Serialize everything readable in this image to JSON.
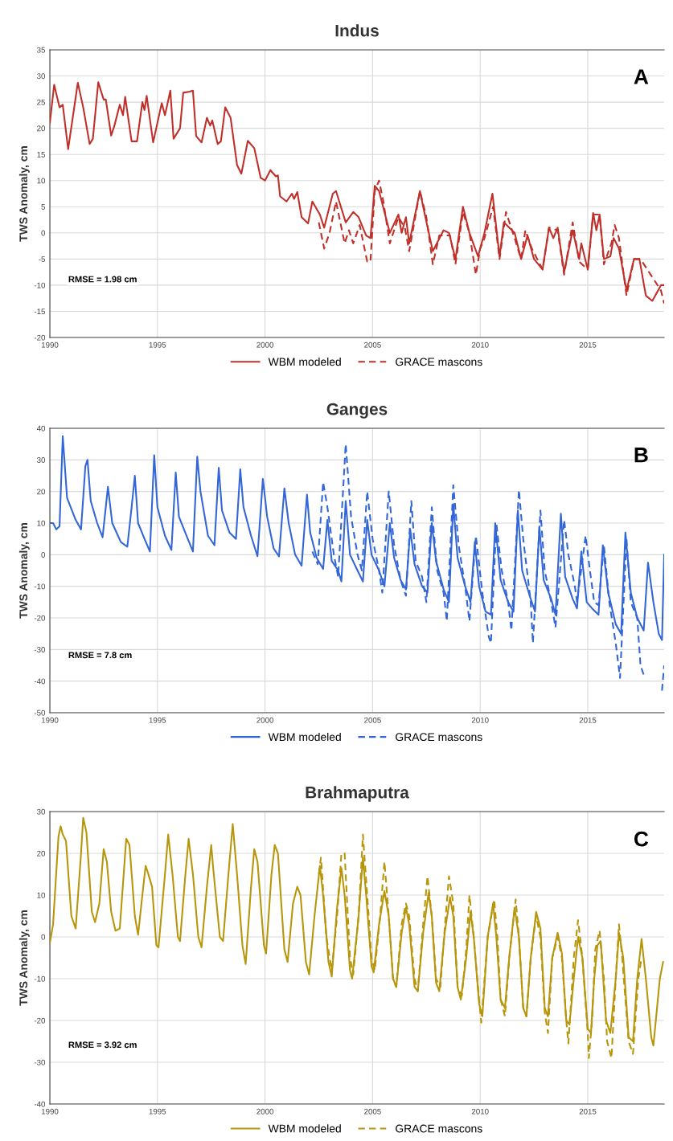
{
  "chart_data": [
    {
      "type": "line",
      "title": "Indus",
      "ylabel": "TWS Anomaly, cm",
      "annotations": [
        "A",
        "RMSE = 1.98 cm"
      ],
      "xlim": [
        1990,
        2018.55
      ],
      "xticks": [
        1990,
        1995,
        2000,
        2005,
        2010,
        2015
      ],
      "ylim": [
        -20,
        35
      ],
      "yticks": [
        -20,
        -15,
        -10,
        -5,
        0,
        5,
        10,
        15,
        20,
        25,
        30,
        35
      ],
      "grid": true,
      "legend": "bottom",
      "marker": "none",
      "series": [
        {
          "name": "WBM modeled",
          "color": "#c0302a",
          "line_style": "solid",
          "x": [
            1990.0,
            1990.2,
            1990.45,
            1990.6,
            1990.85,
            1991.3,
            1991.55,
            1991.85,
            1992.0,
            1992.25,
            1992.5,
            1992.6,
            1992.85,
            1993.0,
            1993.25,
            1993.4,
            1993.5,
            1993.8,
            1994.05,
            1994.3,
            1994.4,
            1994.5,
            1994.8,
            1995.2,
            1995.35,
            1995.6,
            1995.75,
            1996.05,
            1996.2,
            1996.5,
            1996.65,
            1996.8,
            1997.05,
            1997.3,
            1997.45,
            1997.55,
            1997.8,
            1997.95,
            1998.15,
            1998.4,
            1998.7,
            1998.9,
            1999.2,
            1999.5,
            1999.8,
            2000.0,
            2000.25,
            2000.5,
            2000.6,
            2000.7,
            2001.0,
            2001.25,
            2001.35,
            2001.5,
            2001.7,
            2002.0,
            2002.2,
            2002.55,
            2002.75,
            2003.15,
            2003.3,
            2003.75,
            2004.1,
            2004.35,
            2004.7,
            2004.9,
            2005.1,
            2005.3,
            2005.8,
            2006.2,
            2006.35,
            2006.55,
            2006.7,
            2007.2,
            2007.4,
            2007.8,
            2008.3,
            2008.55,
            2008.85,
            2009.2,
            2009.5,
            2009.9,
            2010.2,
            2010.57,
            2010.9,
            2011.1,
            2011.6,
            2011.9,
            2012.2,
            2012.5,
            2012.9,
            2013.2,
            2013.4,
            2013.6,
            2013.9,
            2014.3,
            2014.6,
            2014.7,
            2015.0,
            2015.25,
            2015.4,
            2015.55,
            2015.75,
            2016.05,
            2016.2,
            2016.45,
            2016.8,
            2017.15,
            2017.4,
            2017.7,
            2018.0,
            2018.4,
            2018.55
          ],
          "values": [
            21,
            28.3,
            24,
            24.5,
            16,
            28.7,
            24,
            17,
            18,
            28.8,
            25.5,
            25.5,
            18.6,
            20.5,
            24.5,
            22.5,
            26,
            17.5,
            17.5,
            25,
            23.5,
            26.2,
            17.3,
            24.8,
            22.5,
            27.2,
            18,
            20,
            26.8,
            27,
            27.2,
            18.5,
            17.3,
            22,
            20.5,
            21.5,
            17,
            17.5,
            24,
            22,
            13,
            11.3,
            17.6,
            16.2,
            10.5,
            10,
            12,
            10.8,
            11,
            7,
            6,
            7.5,
            6.5,
            7.8,
            3,
            1.8,
            6,
            3.5,
            1,
            7.5,
            8,
            2,
            4,
            3,
            -0.5,
            -1,
            9,
            8,
            0,
            3.5,
            0,
            3,
            -2,
            8,
            4,
            -3.5,
            0.5,
            0,
            -5,
            5,
            0,
            -4.5,
            0,
            7.5,
            -4.5,
            2,
            0,
            -5,
            -0.5,
            -5,
            -7,
            1,
            -1,
            1,
            -7.5,
            0.5,
            -5,
            -2,
            -7,
            3.8,
            0.5,
            3.5,
            -5,
            -4.5,
            -1,
            -3,
            -11,
            -5,
            -5,
            -12,
            -13,
            -10,
            -10
          ]
        },
        {
          "name": "GRACE mascons",
          "color": "#c0302a",
          "line_style": "dashed",
          "x": [
            2002.5,
            2002.75,
            2003.0,
            2003.3,
            2003.7,
            2003.9,
            2004.1,
            2004.4,
            2004.75,
            2004.9,
            2005.1,
            2005.3,
            2005.5,
            2005.8,
            2006.2,
            2006.5,
            2006.7,
            2007.2,
            2007.5,
            2007.8,
            2008.1,
            2008.6,
            2008.85,
            2009.2,
            2009.5,
            2009.8,
            2010.0,
            2010.2,
            2010.6,
            2010.9,
            2011.2,
            2011.6,
            2011.9,
            2012.1,
            2012.4,
            2012.9,
            2013.2,
            2013.6,
            2013.9,
            2014.3,
            2014.6,
            2015.0,
            2015.25,
            2015.55,
            2015.75,
            2016.1,
            2016.25,
            2016.45,
            2016.8,
            2017.15,
            2017.45,
            2018.4,
            2018.55
          ],
          "values": [
            2,
            -3,
            0,
            6,
            -2,
            0.5,
            -2,
            1.5,
            -5.5,
            -5.5,
            8,
            10,
            6,
            -2,
            3,
            1,
            -3.5,
            8,
            3,
            -6,
            -0.5,
            -0.5,
            -6,
            4,
            0,
            -8,
            -3,
            -1,
            5,
            -5,
            4,
            -1,
            -5,
            0.5,
            -3,
            -7,
            1,
            0.5,
            -8,
            2,
            -5.5,
            -7,
            3.5,
            3.5,
            -6,
            -2,
            1.5,
            -1,
            -12,
            -5,
            -5,
            -11,
            -13.5
          ]
        }
      ]
    },
    {
      "type": "line",
      "title": "Ganges",
      "ylabel": "TWS Anomaly, cm",
      "annotations": [
        "B",
        "RMSE = 7.8 cm"
      ],
      "xlim": [
        1990,
        2018.55
      ],
      "xticks": [
        1990,
        1995,
        2000,
        2005,
        2010,
        2015
      ],
      "ylim": [
        -50,
        40
      ],
      "yticks": [
        -50,
        -40,
        -30,
        -20,
        -10,
        0,
        10,
        20,
        30,
        40
      ],
      "grid": true,
      "legend": "bottom",
      "marker": "none",
      "series": [
        {
          "name": "WBM modeled",
          "color": "#3366d6",
          "line_style": "solid",
          "x": [
            1990.0,
            1990.15,
            1990.3,
            1990.45,
            1990.6,
            1990.8,
            1991.2,
            1991.45,
            1991.65,
            1991.75,
            1991.9,
            1992.2,
            1992.45,
            1992.7,
            1992.9,
            1993.3,
            1993.6,
            1993.8,
            1993.95,
            1994.1,
            1994.4,
            1994.65,
            1994.85,
            1995.0,
            1995.35,
            1995.65,
            1995.85,
            1996.0,
            1996.35,
            1996.65,
            1996.85,
            1997.0,
            1997.35,
            1997.65,
            1997.85,
            1998.0,
            1998.35,
            1998.65,
            1998.85,
            1999.0,
            1999.35,
            1999.65,
            1999.9,
            2000.1,
            2000.4,
            2000.65,
            2000.9,
            2001.1,
            2001.4,
            2001.7,
            2001.95,
            2002.1,
            2002.4,
            2002.7,
            2002.9,
            2003.1,
            2003.4,
            2003.55,
            2003.75,
            2003.95,
            2004.3,
            2004.55,
            2004.75,
            2004.95,
            2005.3,
            2005.55,
            2005.8,
            2006.0,
            2006.3,
            2006.55,
            2006.75,
            2006.95,
            2007.3,
            2007.55,
            2007.75,
            2007.95,
            2008.3,
            2008.55,
            2008.75,
            2008.95,
            2009.3,
            2009.55,
            2009.75,
            2009.95,
            2010.25,
            2010.5,
            2010.7,
            2010.95,
            2011.3,
            2011.55,
            2011.75,
            2011.95,
            2012.3,
            2012.55,
            2012.75,
            2012.95,
            2013.3,
            2013.5,
            2013.75,
            2013.95,
            2014.3,
            2014.5,
            2014.7,
            2014.95,
            2015.2,
            2015.5,
            2015.7,
            2015.95,
            2016.3,
            2016.55,
            2016.75,
            2017.0,
            2017.3,
            2017.6,
            2017.8,
            2018.05,
            2018.3,
            2018.45,
            2018.55
          ],
          "values": [
            10,
            10,
            8,
            9,
            37.5,
            18,
            11,
            8,
            28,
            30,
            17,
            10,
            5.5,
            21.5,
            10,
            4,
            2.5,
            15,
            25,
            10,
            5,
            1,
            31.5,
            15,
            6,
            1.5,
            26,
            12,
            6,
            1,
            31,
            20,
            6,
            3,
            27.5,
            14,
            7,
            5,
            27,
            15,
            6,
            -0.5,
            24,
            12,
            2,
            -0.5,
            21,
            10,
            0,
            -3.5,
            19,
            7,
            -1,
            -4.5,
            11,
            -2,
            -5,
            -8.5,
            17,
            0,
            -5,
            -8.5,
            11,
            0,
            -5,
            -10,
            10,
            -1,
            -8,
            -11,
            8,
            -3,
            -10,
            -12,
            10,
            -2,
            -11,
            -15,
            16,
            -1,
            -10,
            -15,
            4,
            -10,
            -18,
            -19,
            10,
            -8,
            -15,
            -18,
            14,
            -5,
            -13,
            -18,
            9,
            -8,
            -14,
            -19,
            13,
            -7,
            -14,
            -17,
            1,
            -15,
            -17,
            -19,
            3,
            -12,
            -22,
            -25,
            7,
            -12,
            -20,
            -24,
            -2.5,
            -15,
            -25,
            -27,
            0
          ]
        },
        {
          "name": "GRACE mascons",
          "color": "#3366d6",
          "line_style": "dashed",
          "x": [
            2002.2,
            2002.45,
            2002.7,
            2002.9,
            2003.2,
            2003.4,
            2003.75,
            2004.0,
            2004.3,
            2004.5,
            2004.75,
            2005.0,
            2005.3,
            2005.45,
            2005.75,
            2006.0,
            2006.3,
            2006.55,
            2006.8,
            2007.0,
            2007.3,
            2007.5,
            2007.75,
            2008.0,
            2008.3,
            2008.45,
            2008.75,
            2009.0,
            2009.3,
            2009.5,
            2009.8,
            2010.1,
            2010.4,
            2010.5,
            2010.75,
            2011.0,
            2011.3,
            2011.45,
            2011.8,
            2012.0,
            2012.35,
            2012.45,
            2012.8,
            2013.0,
            2013.3,
            2013.5,
            2013.9,
            2014.1,
            2014.4,
            2014.5,
            2014.9,
            2015.1,
            2015.3,
            2015.5,
            2015.75,
            2016.0,
            2016.3,
            2016.5,
            2016.8,
            2017.0,
            2017.3,
            2017.45,
            2017.6,
            2018.0,
            2018.45,
            2018.55
          ],
          "values": [
            1,
            -3,
            23,
            15,
            0,
            -7,
            35,
            12,
            0,
            -5,
            20,
            5,
            -5,
            -12,
            20,
            3,
            -8,
            -13,
            17,
            -2,
            -7,
            -15,
            15,
            -5,
            -12,
            -21,
            22,
            3,
            -10,
            -21,
            6,
            -12,
            -26,
            -28,
            10,
            -5,
            -15,
            -24,
            20.5,
            5,
            -15,
            -28,
            14,
            -5,
            -15,
            -23,
            11,
            0,
            -10,
            -15,
            6,
            -5,
            -15,
            -16,
            3,
            -15,
            -28,
            -39,
            5,
            -15,
            -20,
            -35,
            -38,
            null,
            -43,
            -35
          ]
        }
      ]
    },
    {
      "type": "line",
      "title": "Brahmaputra",
      "ylabel": "TWS Anomaly, cm",
      "annotations": [
        "C",
        "RMSE = 3.92 cm"
      ],
      "xlim": [
        1990,
        2018.55
      ],
      "xticks": [
        1990,
        1995,
        2000,
        2005,
        2010,
        2015
      ],
      "ylim": [
        -40,
        30
      ],
      "yticks": [
        -40,
        -30,
        -20,
        -10,
        0,
        10,
        20,
        30
      ],
      "grid": true,
      "legend": "bottom",
      "marker": "none",
      "series": [
        {
          "name": "WBM modeled",
          "color": "#b8960c",
          "line_style": "solid",
          "x": [
            1990.0,
            1990.15,
            1990.4,
            1990.5,
            1990.6,
            1990.75,
            1991.0,
            1991.2,
            1991.45,
            1991.55,
            1991.7,
            1991.95,
            1992.1,
            1992.3,
            1992.5,
            1992.65,
            1992.85,
            1993.05,
            1993.25,
            1993.55,
            1993.7,
            1993.95,
            1994.1,
            1994.3,
            1994.45,
            1994.55,
            1994.75,
            1994.95,
            1995.05,
            1995.35,
            1995.5,
            1995.7,
            1995.95,
            1996.05,
            1996.3,
            1996.45,
            1996.65,
            1996.9,
            1997.05,
            1997.3,
            1997.5,
            1997.6,
            1997.9,
            1998.05,
            1998.3,
            1998.5,
            1998.7,
            1998.95,
            1999.1,
            1999.35,
            1999.5,
            1999.65,
            1999.95,
            2000.05,
            2000.3,
            2000.45,
            2000.6,
            2000.9,
            2001.05,
            2001.3,
            2001.5,
            2001.65,
            2001.9,
            2002.05,
            2002.3,
            2002.55,
            2002.7,
            2002.95,
            2003.1,
            2003.35,
            2003.55,
            2003.7,
            2003.95,
            2004.05,
            2004.35,
            2004.55,
            2004.7,
            2004.95,
            2005.05,
            2005.3,
            2005.55,
            2005.75,
            2005.95,
            2006.1,
            2006.35,
            2006.55,
            2006.7,
            2006.95,
            2007.1,
            2007.35,
            2007.6,
            2007.75,
            2007.95,
            2008.1,
            2008.35,
            2008.6,
            2008.75,
            2008.95,
            2009.1,
            2009.35,
            2009.55,
            2009.7,
            2009.95,
            2010.1,
            2010.35,
            2010.6,
            2010.75,
            2010.95,
            2011.15,
            2011.35,
            2011.6,
            2011.8,
            2012.0,
            2012.15,
            2012.35,
            2012.6,
            2012.8,
            2013.0,
            2013.15,
            2013.35,
            2013.6,
            2013.8,
            2014.0,
            2014.15,
            2014.35,
            2014.55,
            2014.75,
            2015.0,
            2015.15,
            2015.3,
            2015.45,
            2015.6,
            2015.85,
            2016.05,
            2016.3,
            2016.45,
            2016.65,
            2016.9,
            2017.1,
            2017.3,
            2017.5,
            2017.7,
            2017.95,
            2018.05,
            2018.35,
            2018.5
          ],
          "values": [
            -1.5,
            3,
            24,
            26.5,
            24.5,
            23,
            5,
            2,
            20,
            28.5,
            25,
            6,
            3.5,
            8,
            21,
            18,
            6,
            1.5,
            2,
            23.5,
            22,
            5,
            0.5,
            10,
            17,
            15.5,
            12,
            -2,
            -2.5,
            15,
            24.5,
            15,
            0,
            -1,
            15,
            23.5,
            15,
            0,
            -2.5,
            12,
            22,
            16,
            0,
            -1,
            15,
            27,
            15,
            -2,
            -6.5,
            12,
            21,
            18,
            -2,
            -4,
            15,
            22,
            20,
            -3,
            -6,
            8,
            12,
            10,
            -6,
            -9,
            5,
            17,
            10,
            -6,
            -9.5,
            7,
            16.5,
            10,
            -8,
            -10,
            5,
            19,
            10,
            -7,
            -8.5,
            3,
            11,
            5,
            -10,
            -12,
            1,
            7,
            3,
            -12,
            -13,
            1,
            10.5,
            5,
            -11,
            -13,
            1,
            9.5,
            5,
            -12,
            -15,
            -5,
            6,
            0,
            -16,
            -19,
            0,
            8,
            0,
            -15,
            -17,
            -5,
            7,
            0,
            -17,
            -19,
            -5,
            6,
            2,
            -17,
            -19,
            -5,
            1,
            -4,
            -20,
            -21,
            -10,
            0,
            -5,
            -22,
            -23,
            -10,
            -2,
            -1,
            -20,
            -23,
            -10,
            1,
            -5,
            -24,
            -25,
            -10,
            -0.5,
            -10,
            -24,
            -26,
            -10,
            -6
          ]
        },
        {
          "name": "GRACE mascons",
          "color": "#b8960c",
          "line_style": "dashed",
          "x": [
            2002.5,
            2002.6,
            2002.85,
            2003.1,
            2003.35,
            2003.55,
            2003.7,
            2003.95,
            2004.1,
            2004.35,
            2004.55,
            2004.75,
            2004.95,
            2005.1,
            2005.35,
            2005.55,
            2005.75,
            2005.95,
            2006.1,
            2006.35,
            2006.55,
            2006.7,
            2006.95,
            2007.1,
            2007.35,
            2007.55,
            2007.75,
            2007.95,
            2008.15,
            2008.35,
            2008.55,
            2008.75,
            2008.95,
            2009.15,
            2009.35,
            2009.5,
            2009.7,
            2009.95,
            2010.05,
            2010.35,
            2010.65,
            2010.8,
            2010.95,
            2011.15,
            2011.35,
            2011.65,
            2011.8,
            2012.0,
            2012.15,
            2012.35,
            2012.6,
            2012.8,
            2013.0,
            2013.15,
            2013.35,
            2013.6,
            2013.8,
            2014.0,
            2014.1,
            2014.35,
            2014.55,
            2014.75,
            2015.0,
            2015.05,
            2015.2,
            2015.35,
            2015.55,
            2015.75,
            2015.9,
            2016.1,
            2016.3,
            2016.45,
            2016.6,
            2016.9,
            2017.1,
            2017.35,
            2017.5
          ],
          "values": [
            15,
            19,
            0,
            -8,
            5,
            20,
            20,
            -5,
            -9,
            5,
            24.5,
            10,
            -5,
            -8,
            5,
            18,
            5,
            -10,
            -12,
            3,
            8,
            5,
            -10,
            -13,
            3,
            14.5,
            5,
            -10,
            -12,
            2,
            14.5,
            8,
            -12,
            -14,
            -3,
            10,
            0,
            -15,
            -20.5,
            0,
            9,
            0,
            -15,
            -19,
            -5,
            9,
            0,
            -17,
            -19,
            -5,
            5,
            0,
            -18,
            -23,
            -5,
            0,
            -5,
            -20,
            -25.5,
            -5,
            4,
            -5,
            -23,
            -29,
            -20,
            -3,
            1.5,
            -10,
            -25,
            -29,
            -10,
            3,
            -5,
            -25,
            -28,
            -10,
            -5
          ]
        }
      ]
    }
  ]
}
